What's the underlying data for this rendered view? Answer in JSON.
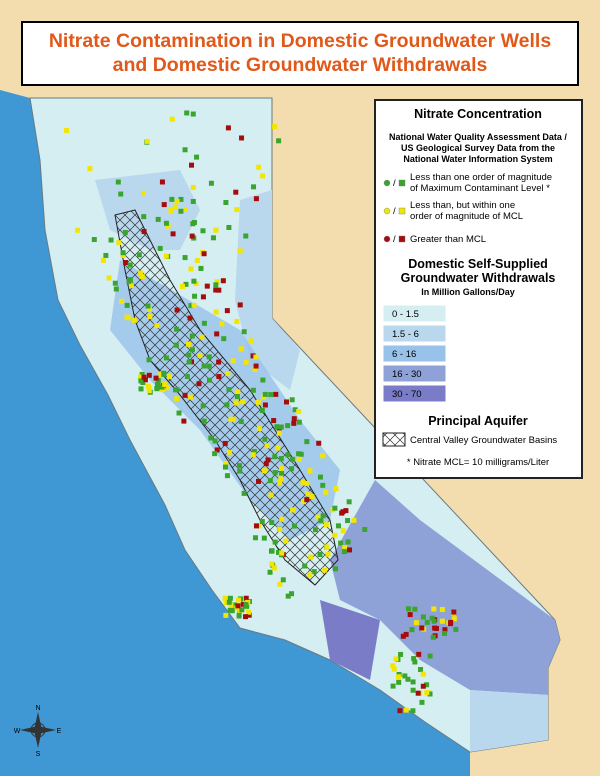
{
  "title": {
    "line1": "Nitrate Contamination in Domestic Groundwater Wells",
    "line2": "and Domestic Groundwater Withdrawals"
  },
  "legend": {
    "nitrate_heading": "Nitrate Concentration",
    "source": [
      "National Water Quality Assessment Data /",
      "US Geological Survey Data from the",
      "National Water Information System"
    ],
    "separator": "/",
    "nitrate_classes": [
      {
        "label_lines": [
          "Less than one order of magnitude",
          "of Maximum Contaminant Level *"
        ],
        "color": "#3aa52e"
      },
      {
        "label_lines": [
          "Less than, but within one",
          "order of magnitude of MCL"
        ],
        "color": "#f2e600"
      },
      {
        "label_lines": [
          "Greater than MCL"
        ],
        "color": "#a50c0c"
      }
    ],
    "withdrawals_heading": [
      "Domestic Self-Supplied",
      "Groundwater Withdrawals"
    ],
    "withdrawals_units": "In Million Gallons/Day",
    "withdrawal_classes": [
      {
        "label": "0 - 1.5",
        "color": "#d4eef2"
      },
      {
        "label": "1.5 - 6",
        "color": "#b9d8ee"
      },
      {
        "label": "6 - 16",
        "color": "#98c2ea"
      },
      {
        "label": "16 - 30",
        "color": "#8fa2d8"
      },
      {
        "label": "30 - 70",
        "color": "#7a7cc8"
      }
    ],
    "aquifer_heading": "Principal Aquifer",
    "aquifer_label": "Central Valley Groundwater Basins",
    "footnote": "* Nitrate MCL= 10 milligrams/Liter"
  },
  "compass": {
    "n": "N",
    "s": "S",
    "e": "E",
    "w": "W"
  }
}
